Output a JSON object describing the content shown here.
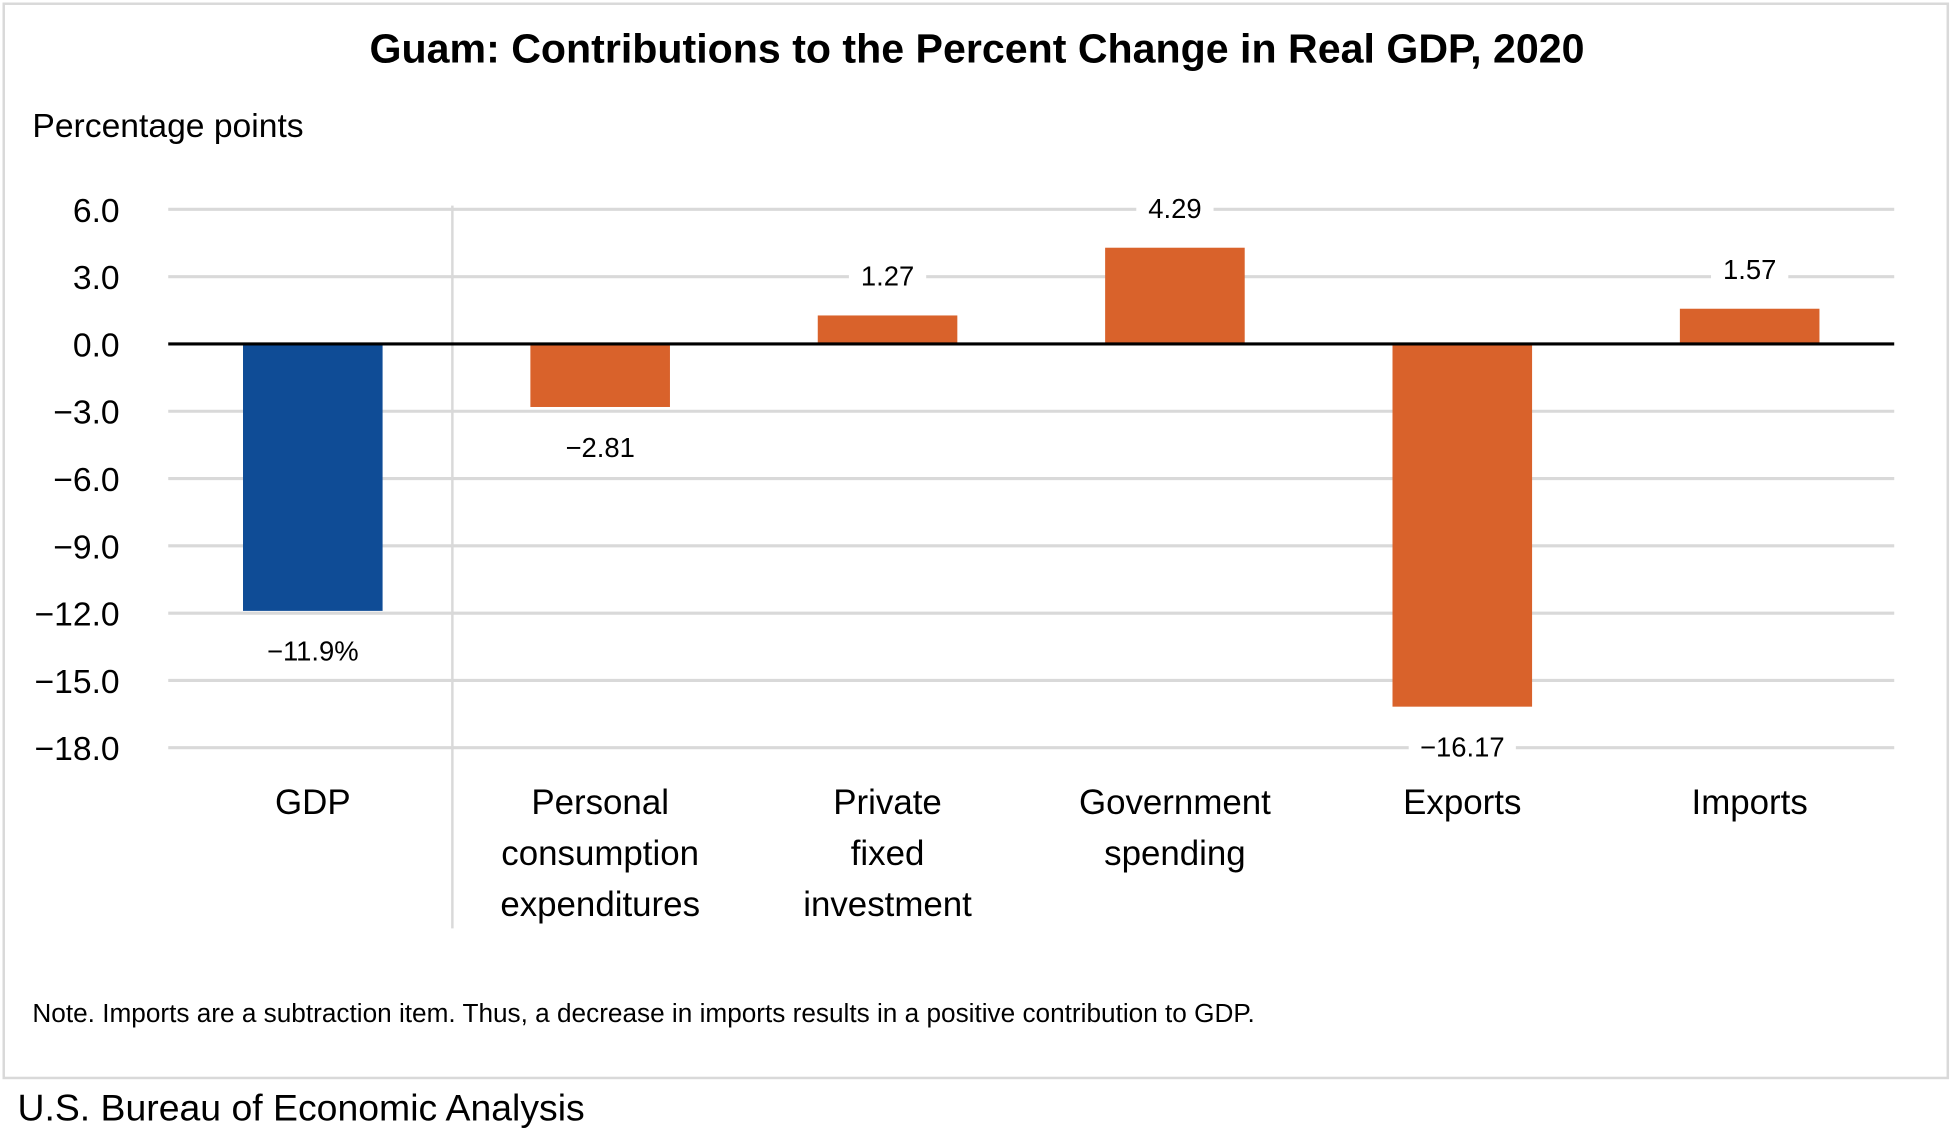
{
  "chart_data": {
    "type": "bar",
    "title": "Guam: Contributions to the Percent Change in Real GDP, 2020",
    "ylabel": "Percentage points",
    "xlabel": "",
    "categories": [
      [
        "GDP"
      ],
      [
        "Personal",
        "consumption",
        "expenditures"
      ],
      [
        "Private",
        "fixed",
        "investment"
      ],
      [
        "Government",
        "spending"
      ],
      [
        "Exports"
      ],
      [
        "Imports"
      ]
    ],
    "values": [
      -11.9,
      -2.81,
      1.27,
      4.29,
      -16.17,
      1.57
    ],
    "data_labels": [
      "−11.9%",
      "−2.81",
      "1.27",
      "4.29",
      "−16.17",
      "1.57"
    ],
    "bar_colors": [
      "#0f4c96",
      "#d9622b",
      "#d9622b",
      "#d9622b",
      "#d9622b",
      "#d9622b"
    ],
    "ylim": [
      -18,
      6
    ],
    "yticks": [
      6,
      3,
      0,
      -3,
      -6,
      -9,
      -12,
      -15,
      -18
    ],
    "ytick_labels": [
      "6.0",
      "3.0",
      "0.0",
      "−3.0",
      "−6.0",
      "−9.0",
      "−12.0",
      "−15.0",
      "−18.0"
    ],
    "grid": true,
    "legend": "none",
    "note": "Note. Imports are a subtraction item. Thus, a decrease in imports results in a positive contribution to GDP."
  },
  "source": "U.S. Bureau of Economic Analysis"
}
